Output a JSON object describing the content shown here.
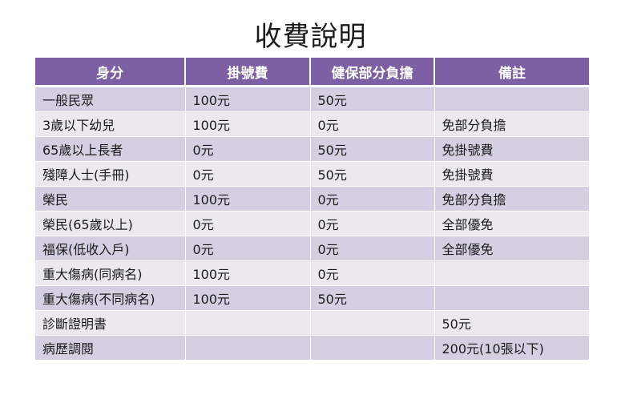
{
  "title": "收費說明",
  "table": {
    "headers": [
      "身分",
      "掛號費",
      "健保部分負擔",
      "備註"
    ],
    "rows": [
      [
        "一般民眾",
        "100元",
        "50元",
        ""
      ],
      [
        "3歲以下幼兒",
        "100元",
        "0元",
        "免部分負擔"
      ],
      [
        "65歲以上長者",
        "0元",
        "50元",
        "免掛號費"
      ],
      [
        "殘障人士(手冊)",
        "0元",
        "50元",
        "免掛號費"
      ],
      [
        "榮民",
        "100元",
        "0元",
        "免部分負擔"
      ],
      [
        "榮民(65歲以上)",
        "0元",
        "0元",
        "全部優免"
      ],
      [
        "福保(低收入戶)",
        "0元",
        "0元",
        "全部優免"
      ],
      [
        "重大傷病(同病名)",
        "100元",
        "0元",
        ""
      ],
      [
        "重大傷病(不同病名)",
        "100元",
        "50元",
        ""
      ],
      [
        "診斷證明書",
        "",
        "",
        "50元"
      ],
      [
        "病歷調閱",
        "",
        "",
        "200元(10張以下)"
      ]
    ]
  },
  "colors": {
    "header_bg": "#7d5fa3",
    "row_odd": "#d5d0e1",
    "row_even": "#ebe8f0"
  }
}
